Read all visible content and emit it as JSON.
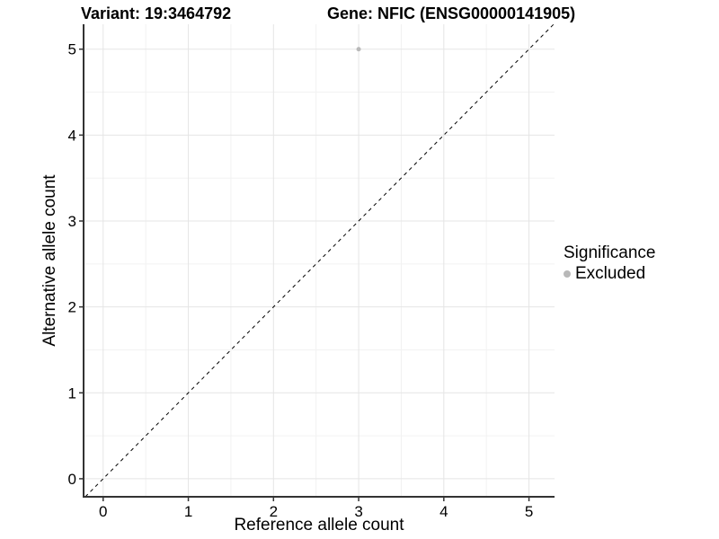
{
  "chart_data": {
    "type": "scatter",
    "title_left": "Variant: 19:3464792",
    "title_right": "Gene: NFIC (ENSG00000141905)",
    "xlabel": "Reference allele count",
    "ylabel": "Alternative allele count",
    "xlim": [
      -0.23,
      5.3
    ],
    "ylim": [
      -0.21,
      5.29
    ],
    "xticks": [
      "0",
      "1",
      "2",
      "3",
      "4",
      "5"
    ],
    "yticks": [
      "0",
      "1",
      "2",
      "3",
      "4",
      "5"
    ],
    "grid": {
      "major": true,
      "minor": true,
      "minor_offset": 0.5
    },
    "points": [
      {
        "x": 3,
        "y": 5,
        "series": "Excluded"
      }
    ],
    "reference_line": {
      "type": "identity",
      "slope": 1,
      "intercept": 0,
      "style": "dashed",
      "color": "#000000"
    },
    "legend": {
      "title": "Significance",
      "position": "right",
      "items": [
        {
          "label": "Excluded",
          "color": "#b9b9b9",
          "marker": "circle"
        }
      ]
    },
    "colors": {
      "point": "#b9b9b9",
      "grid_major": "#e5e5e5",
      "grid_minor": "#f2f2f2",
      "axis_line": "#333333",
      "tick": "#333333",
      "text": "#000000",
      "background": "#ffffff"
    }
  }
}
